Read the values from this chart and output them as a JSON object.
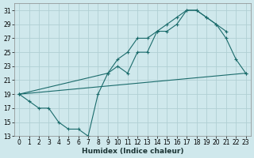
{
  "xlabel": "Humidex (Indice chaleur)",
  "bg_color": "#cfe8ec",
  "grid_color": "#b0cfd4",
  "line_color": "#1a6b6b",
  "xlim": [
    -0.5,
    23.5
  ],
  "ylim": [
    13,
    32
  ],
  "xticks": [
    0,
    1,
    2,
    3,
    4,
    5,
    6,
    7,
    8,
    9,
    10,
    11,
    12,
    13,
    14,
    15,
    16,
    17,
    18,
    19,
    20,
    21,
    22,
    23
  ],
  "yticks": [
    13,
    15,
    17,
    19,
    21,
    23,
    25,
    27,
    29,
    31
  ],
  "line1_x": [
    0,
    1,
    2,
    3,
    4,
    5,
    6,
    7,
    8,
    9,
    10,
    11,
    12,
    13,
    14,
    15,
    16,
    17,
    18,
    19,
    20,
    21
  ],
  "line1_y": [
    19,
    18,
    17,
    17,
    15,
    14,
    14,
    13,
    19,
    22,
    23,
    22,
    25,
    25,
    28,
    28,
    29,
    31,
    31,
    30,
    29,
    28
  ],
  "line2_x": [
    0,
    9,
    10,
    11,
    12,
    13,
    14,
    15,
    16,
    17,
    18,
    19,
    20,
    21,
    22,
    23
  ],
  "line2_y": [
    19,
    22,
    24,
    25,
    27,
    27,
    28,
    29,
    30,
    31,
    31,
    30,
    29,
    27,
    24,
    22
  ],
  "line3_x": [
    0,
    23
  ],
  "line3_y": [
    19,
    22
  ],
  "xlabel_fontsize": 6.5,
  "tick_fontsize": 5.5
}
